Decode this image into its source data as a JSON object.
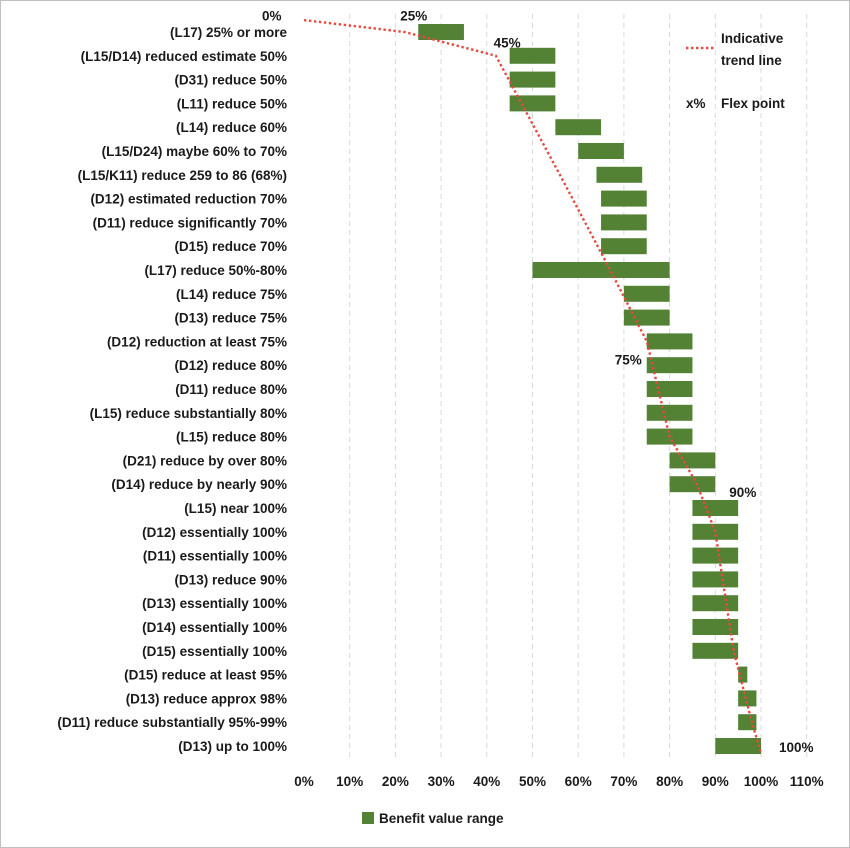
{
  "chart_data": {
    "type": "bar",
    "orientation": "horizontal-floating",
    "categories": [
      "(L17) 25% or more",
      "(L15/D14) reduced estimate 50%",
      "(D31) reduce 50%",
      "(L11) reduce 50%",
      "(L14) reduce 60%",
      "(L15/D24) maybe 60% to 70%",
      "(L15/K11) reduce 259 to 86 (68%)",
      "(D12) estimated reduction 70%",
      "(D11) reduce significantly 70%",
      "(D15) reduce 70%",
      "(L17) reduce 50%-80%",
      "(L14) reduce 75%",
      "(D13) reduce 75%",
      "(D12) reduction at least 75%",
      "(D12) reduce 80%",
      "(D11) reduce 80%",
      "(L15) reduce substantially 80%",
      "(L15) reduce 80%",
      "(D21) reduce by over 80%",
      "(D14) reduce by nearly 90%",
      "(L15) near 100%",
      "(D12) essentially 100%",
      "(D11) essentially 100%",
      "(D13) reduce 90%",
      "(D13) essentially 100%",
      "(D14) essentially 100%",
      "(D15) essentially 100%",
      "(D15) reduce at least 95%",
      "(D13) reduce approx 98%",
      "(D11) reduce substantially 95%-99%",
      "(D13) up to 100%"
    ],
    "series": [
      {
        "name": "Benefit value range",
        "color": "#548235",
        "ranges": [
          [
            25,
            35
          ],
          [
            45,
            55
          ],
          [
            45,
            55
          ],
          [
            45,
            55
          ],
          [
            55,
            65
          ],
          [
            60,
            70
          ],
          [
            64,
            74
          ],
          [
            65,
            75
          ],
          [
            65,
            75
          ],
          [
            65,
            75
          ],
          [
            50,
            80
          ],
          [
            70,
            80
          ],
          [
            70,
            80
          ],
          [
            75,
            85
          ],
          [
            75,
            85
          ],
          [
            75,
            85
          ],
          [
            75,
            85
          ],
          [
            75,
            85
          ],
          [
            80,
            90
          ],
          [
            80,
            90
          ],
          [
            85,
            95
          ],
          [
            85,
            95
          ],
          [
            85,
            95
          ],
          [
            85,
            95
          ],
          [
            85,
            95
          ],
          [
            85,
            95
          ],
          [
            85,
            95
          ],
          [
            95,
            97
          ],
          [
            95,
            99
          ],
          [
            95,
            99
          ],
          [
            90,
            100
          ]
        ]
      },
      {
        "name": "Indicative trend line",
        "color": "#e8483f",
        "points": [
          {
            "x": 0,
            "row": -0.5
          },
          {
            "x": 22,
            "row": 0
          },
          {
            "x": 42,
            "row": 1
          },
          {
            "x": 56,
            "row": 6
          },
          {
            "x": 67,
            "row": 10
          },
          {
            "x": 75,
            "row": 13
          },
          {
            "x": 80,
            "row": 17
          },
          {
            "x": 86,
            "row": 19
          },
          {
            "x": 90,
            "row": 21
          },
          {
            "x": 94,
            "row": 26
          },
          {
            "x": 98,
            "row": 29
          },
          {
            "x": 100,
            "row": 30.3
          }
        ]
      }
    ],
    "flex_points": [
      {
        "label": "0%",
        "x": 0,
        "row": -0.6
      },
      {
        "label": "25%",
        "x": 25,
        "row": -0.6
      },
      {
        "label": "45%",
        "x": 45,
        "row": 0.6
      },
      {
        "label": "75%",
        "x": 75,
        "row": 13
      },
      {
        "label": "90%",
        "x": 90,
        "row": 19.5
      },
      {
        "label": "100%",
        "x": 100,
        "row": 30
      }
    ],
    "xaxis": {
      "min": 0,
      "max": 110,
      "step": 10,
      "tick_labels": [
        "0%",
        "10%",
        "20%",
        "30%",
        "40%",
        "50%",
        "60%",
        "70%",
        "80%",
        "90%",
        "100%",
        "110%"
      ]
    },
    "grid": "vertical-dashed",
    "legend": {
      "placement": "bottom",
      "bar_label": "Benefit value range",
      "trend_label_line1": "Indicative",
      "trend_label_line2": "trend line",
      "flex_key": "x%",
      "flex_label": "Flex point"
    }
  }
}
